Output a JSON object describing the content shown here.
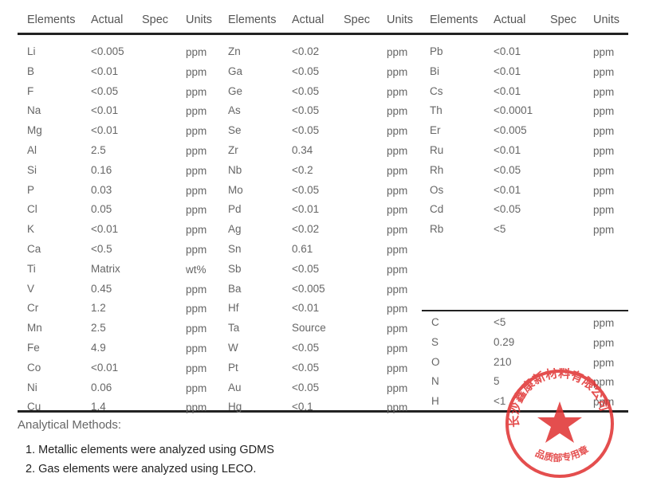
{
  "headers": [
    "Elements",
    "Actual",
    "Spec",
    "Units"
  ],
  "group1": [
    {
      "el": "Li",
      "actual": "<0.005",
      "units": "ppm"
    },
    {
      "el": "B",
      "actual": "<0.01",
      "units": "ppm"
    },
    {
      "el": "F",
      "actual": "<0.05",
      "units": "ppm"
    },
    {
      "el": "Na",
      "actual": "<0.01",
      "units": "ppm"
    },
    {
      "el": "Mg",
      "actual": "<0.01",
      "units": "ppm"
    },
    {
      "el": "Al",
      "actual": "2.5",
      "units": "ppm"
    },
    {
      "el": "Si",
      "actual": "0.16",
      "units": "ppm"
    },
    {
      "el": "P",
      "actual": "0.03",
      "units": "ppm"
    },
    {
      "el": "Cl",
      "actual": "0.05",
      "units": "ppm"
    },
    {
      "el": "K",
      "actual": "<0.01",
      "units": "ppm"
    },
    {
      "el": "Ca",
      "actual": "<0.5",
      "units": "ppm"
    },
    {
      "el": "Ti",
      "actual": "Matrix",
      "units": "wt%"
    },
    {
      "el": "V",
      "actual": "0.45",
      "units": "ppm"
    },
    {
      "el": "Cr",
      "actual": "1.2",
      "units": "ppm"
    },
    {
      "el": "Mn",
      "actual": "2.5",
      "units": "ppm"
    },
    {
      "el": "Fe",
      "actual": "4.9",
      "units": "ppm"
    },
    {
      "el": "Co",
      "actual": "<0.01",
      "units": "ppm"
    },
    {
      "el": "Ni",
      "actual": "0.06",
      "units": "ppm"
    },
    {
      "el": "Cu",
      "actual": "1.4",
      "units": "ppm"
    }
  ],
  "group2": [
    {
      "el": "Zn",
      "actual": "<0.02",
      "units": "ppm"
    },
    {
      "el": "Ga",
      "actual": "<0.05",
      "units": "ppm"
    },
    {
      "el": "Ge",
      "actual": "<0.05",
      "units": "ppm"
    },
    {
      "el": "As",
      "actual": "<0.05",
      "units": "ppm"
    },
    {
      "el": "Se",
      "actual": "<0.05",
      "units": "ppm"
    },
    {
      "el": "Zr",
      "actual": "0.34",
      "units": "ppm"
    },
    {
      "el": "Nb",
      "actual": "<0.2",
      "units": "ppm"
    },
    {
      "el": "Mo",
      "actual": "<0.05",
      "units": "ppm"
    },
    {
      "el": "Pd",
      "actual": "<0.01",
      "units": "ppm"
    },
    {
      "el": "Ag",
      "actual": "<0.02",
      "units": "ppm"
    },
    {
      "el": "Sn",
      "actual": "0.61",
      "units": "ppm"
    },
    {
      "el": "Sb",
      "actual": "<0.05",
      "units": "ppm"
    },
    {
      "el": "Ba",
      "actual": "<0.005",
      "units": "ppm"
    },
    {
      "el": "Hf",
      "actual": "<0.01",
      "units": "ppm"
    },
    {
      "el": "Ta",
      "actual": "Source",
      "units": "ppm"
    },
    {
      "el": "W",
      "actual": "<0.05",
      "units": "ppm"
    },
    {
      "el": "Pt",
      "actual": "<0.05",
      "units": "ppm"
    },
    {
      "el": "Au",
      "actual": "<0.05",
      "units": "ppm"
    },
    {
      "el": "Hg",
      "actual": "<0.1",
      "units": "ppm"
    }
  ],
  "group3": [
    {
      "el": "Pb",
      "actual": "<0.01",
      "units": "ppm"
    },
    {
      "el": "Bi",
      "actual": "<0.01",
      "units": "ppm"
    },
    {
      "el": "Cs",
      "actual": "<0.01",
      "units": "ppm"
    },
    {
      "el": "Th",
      "actual": "<0.0001",
      "units": "ppm"
    },
    {
      "el": "Er",
      "actual": "<0.005",
      "units": "ppm"
    },
    {
      "el": "Ru",
      "actual": "<0.01",
      "units": "ppm"
    },
    {
      "el": "Rh",
      "actual": "<0.05",
      "units": "ppm"
    },
    {
      "el": "Os",
      "actual": "<0.01",
      "units": "ppm"
    },
    {
      "el": "Cd",
      "actual": "<0.05",
      "units": "ppm"
    },
    {
      "el": "Rb",
      "actual": "<5",
      "units": "ppm"
    }
  ],
  "gases": [
    {
      "el": "C",
      "actual": "<5",
      "units": "ppm"
    },
    {
      "el": "S",
      "actual": "0.29",
      "units": "ppm"
    },
    {
      "el": "O",
      "actual": "210",
      "units": "ppm"
    },
    {
      "el": "N",
      "actual": "5",
      "units": "ppm"
    },
    {
      "el": "H",
      "actual": "<1",
      "units": "ppm"
    }
  ],
  "methods": {
    "title": "Analytical Methods:",
    "items": [
      "1. Metallic elements were analyzed using GDMS",
      "2. Gas elements were analyzed using LECO."
    ]
  },
  "stamp": {
    "text": "长沙鑫康新材料有限公司",
    "bottom_text": "品质部专用章",
    "color": "#e03030"
  }
}
